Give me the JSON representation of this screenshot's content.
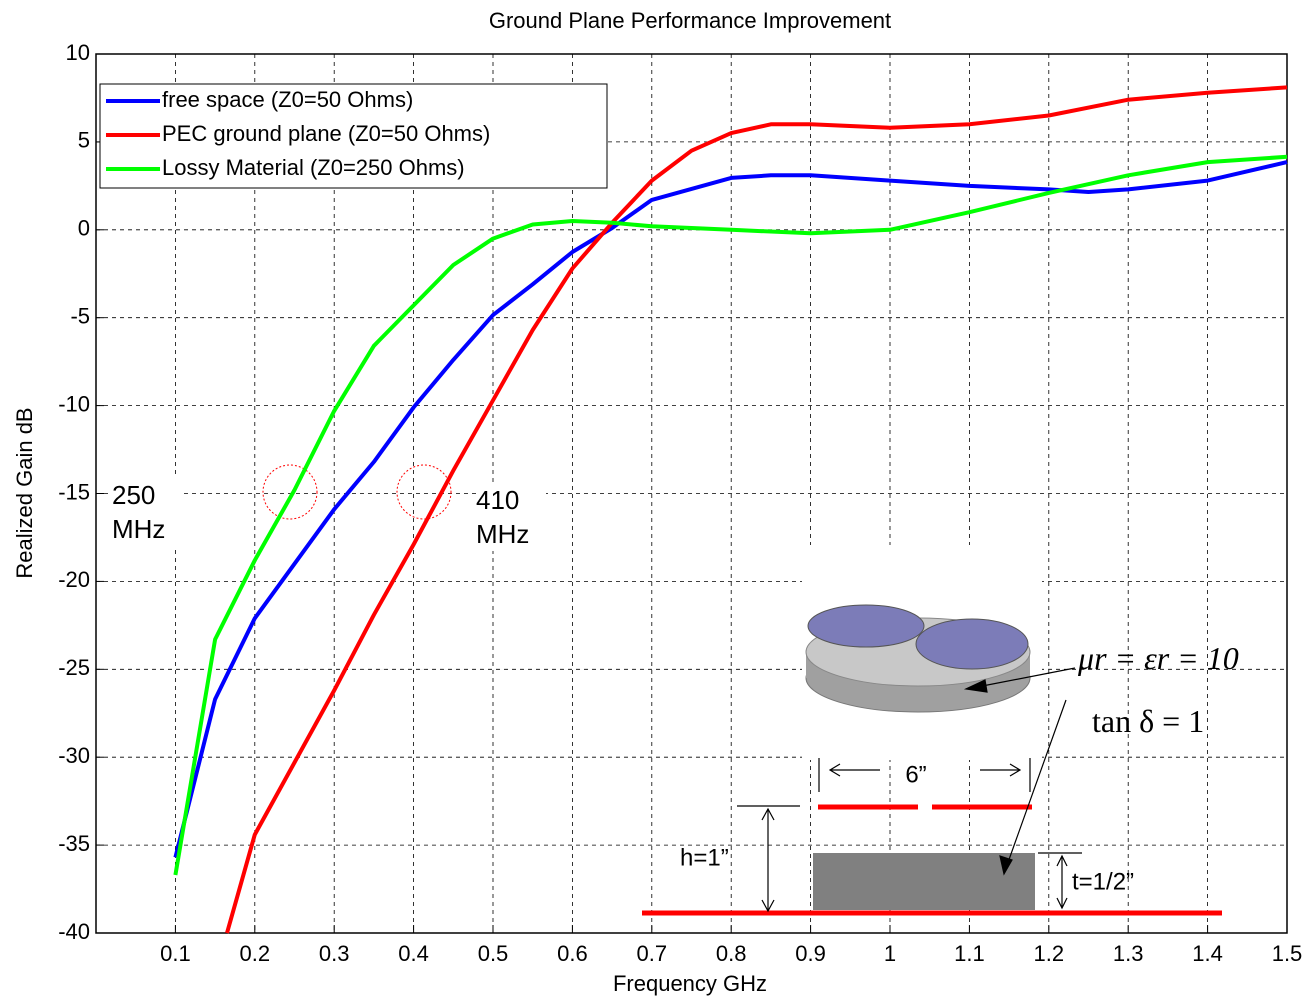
{
  "chart_data": {
    "type": "line",
    "title": "Ground Plane Performance Improvement",
    "x_label": "Frequency GHz",
    "y_label": "Realized Gain dB",
    "xlim": [
      0,
      1.5
    ],
    "xticks": [
      0.1,
      0.2,
      0.3,
      0.4,
      0.5,
      0.6,
      0.7,
      0.8,
      0.9,
      1,
      1.1,
      1.2,
      1.3,
      1.4,
      1.5
    ],
    "ylim": [
      -40,
      10
    ],
    "yticks": [
      -40,
      -35,
      -30,
      -25,
      -20,
      -15,
      -10,
      -5,
      0,
      5,
      10
    ],
    "grid": true,
    "legend": "upper left",
    "series": [
      {
        "name": "free space (Z0=50 Ohms)",
        "color": "#0000ff",
        "x": [
          0.1,
          0.15,
          0.2,
          0.25,
          0.3,
          0.35,
          0.4,
          0.45,
          0.5,
          0.55,
          0.6,
          0.65,
          0.7,
          0.8,
          0.85,
          0.9,
          1.0,
          1.1,
          1.2,
          1.25,
          1.3,
          1.4,
          1.5
        ],
        "values": [
          -35.7,
          -26.7,
          -22.1,
          -19,
          -15.9,
          -13.2,
          -10.1,
          -7.4,
          -4.85,
          -3.1,
          -1.26,
          0.1,
          1.7,
          2.95,
          3.1,
          3.1,
          2.8,
          2.5,
          2.3,
          2.15,
          2.3,
          2.8,
          3.85
        ]
      },
      {
        "name": "PEC ground plane (Z0=50 Ohms)",
        "color": "#ff0000",
        "x": [
          0.165,
          0.2,
          0.25,
          0.3,
          0.35,
          0.4,
          0.45,
          0.5,
          0.55,
          0.6,
          0.65,
          0.7,
          0.75,
          0.8,
          0.85,
          0.9,
          1.0,
          1.1,
          1.2,
          1.3,
          1.4,
          1.5
        ],
        "values": [
          -40,
          -34.4,
          -30.3,
          -26.2,
          -21.9,
          -17.9,
          -13.7,
          -9.7,
          -5.7,
          -2.2,
          0.4,
          2.8,
          4.5,
          5.5,
          6.0,
          6.0,
          5.8,
          6.0,
          6.5,
          7.4,
          7.8,
          8.1
        ]
      },
      {
        "name": "Lossy Material (Z0=250 Ohms)",
        "color": "#00ff00",
        "x": [
          0.1,
          0.15,
          0.2,
          0.25,
          0.3,
          0.35,
          0.4,
          0.45,
          0.5,
          0.55,
          0.6,
          0.65,
          0.7,
          0.8,
          0.9,
          1.0,
          1.1,
          1.2,
          1.3,
          1.4,
          1.5
        ],
        "values": [
          -36.7,
          -23.3,
          -18.8,
          -14.8,
          -10.3,
          -6.6,
          -4.3,
          -2.0,
          -0.5,
          0.3,
          0.5,
          0.4,
          0.2,
          0,
          -0.2,
          0,
          1.0,
          2.1,
          3.1,
          3.85,
          4.15
        ]
      }
    ],
    "annotations": [
      "250 MHz",
      "410 MHz",
      "μr = εr = 10",
      "tan δ = 1",
      "6”",
      "h=1”",
      "t=1/2”"
    ]
  }
}
